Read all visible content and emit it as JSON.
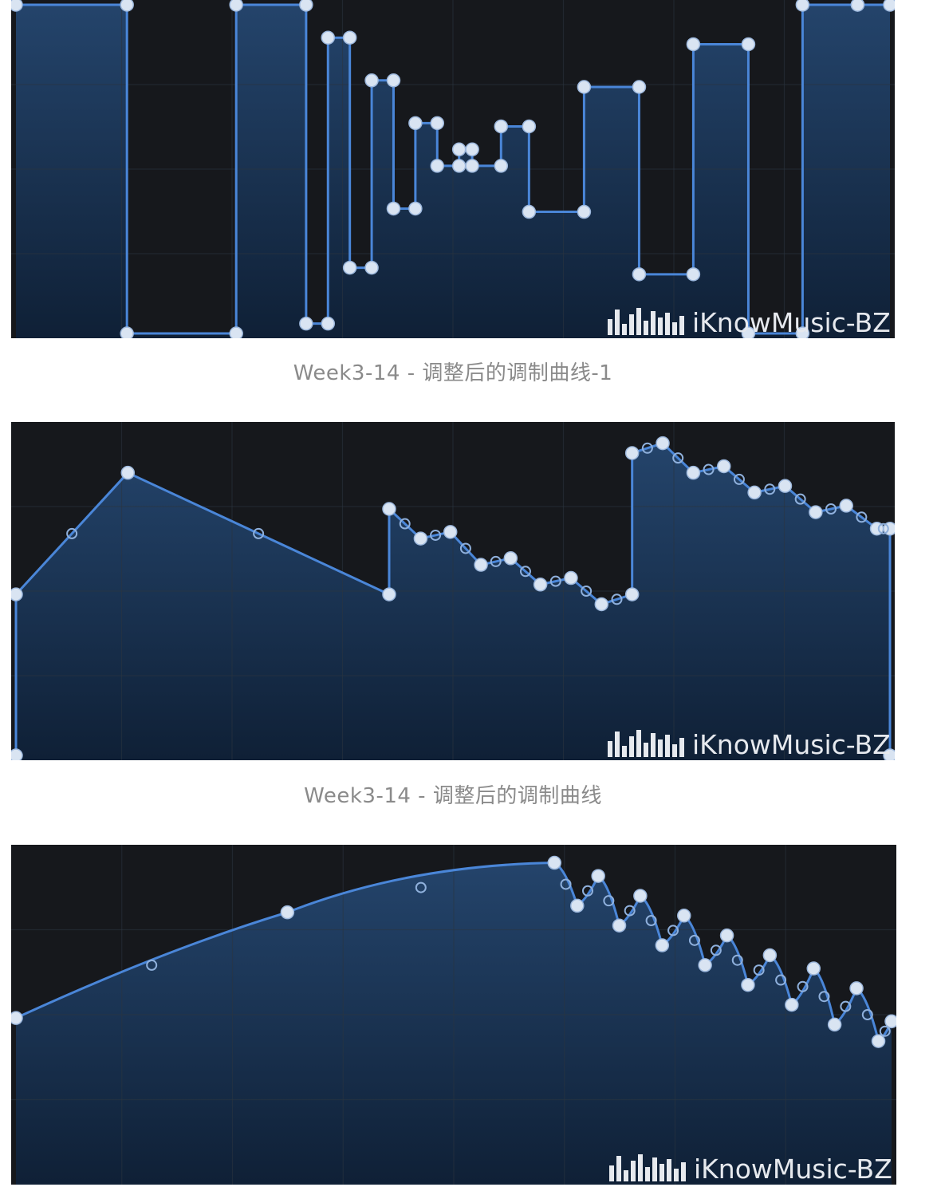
{
  "watermark": "iKnowMusic-BZ",
  "colors": {
    "line": "#4a86d8",
    "node": "#d9e4f2",
    "fill_top": "#24446b",
    "fill_bottom": "#0f2036",
    "grid": "#2c3540",
    "background": "#16181c"
  },
  "chart_data": [
    {
      "type": "line",
      "style": "step",
      "caption": "Week3-14 - 调整后的调制曲线-1",
      "xlim": [
        0,
        1
      ],
      "ylim": [
        0,
        1
      ],
      "grid": true,
      "x": [
        0,
        0.127,
        0.127,
        0.252,
        0.252,
        0.332,
        0.332,
        0.357,
        0.357,
        0.382,
        0.382,
        0.407,
        0.407,
        0.432,
        0.432,
        0.457,
        0.457,
        0.482,
        0.482,
        0.507,
        0.507,
        0.522,
        0.522,
        0.555,
        0.555,
        0.587,
        0.587,
        0.65,
        0.65,
        0.713,
        0.713,
        0.775,
        0.775,
        0.838,
        0.838,
        0.9,
        0.9,
        0.963,
        0.963,
        1
      ],
      "y": [
        1,
        1,
        0,
        0,
        1,
        1,
        0.03,
        0.03,
        0.9,
        0.9,
        0.2,
        0.2,
        0.77,
        0.77,
        0.38,
        0.38,
        0.64,
        0.64,
        0.51,
        0.51,
        0.56,
        0.56,
        0.51,
        0.51,
        0.63,
        0.63,
        0.37,
        0.37,
        0.75,
        0.75,
        0.18,
        0.18,
        0.88,
        0.88,
        0,
        0,
        1,
        1,
        1,
        1
      ]
    },
    {
      "type": "line",
      "style": "linear",
      "caption": "Week3-14 - 调整后的调制曲线",
      "xlim": [
        0,
        1
      ],
      "ylim": [
        0,
        1
      ],
      "grid": true,
      "x": [
        0,
        0,
        0.128,
        0.427,
        0.427,
        0.463,
        0.497,
        0.532,
        0.566,
        0.6,
        0.635,
        0.67,
        0.705,
        0.705,
        0.74,
        0.775,
        0.81,
        0.845,
        0.88,
        0.915,
        0.95,
        0.985,
        1,
        1
      ],
      "y": [
        0,
        0.49,
        0.86,
        0.49,
        0.75,
        0.66,
        0.68,
        0.58,
        0.6,
        0.52,
        0.54,
        0.46,
        0.49,
        0.92,
        0.95,
        0.86,
        0.88,
        0.8,
        0.82,
        0.74,
        0.76,
        0.69,
        0.69,
        0
      ]
    },
    {
      "type": "line",
      "style": "curve",
      "caption": "",
      "xlim": [
        0,
        1
      ],
      "ylim": [
        0,
        1
      ],
      "grid": true,
      "x": [
        0,
        0.31,
        0.615,
        0.641,
        0.665,
        0.689,
        0.713,
        0.738,
        0.763,
        0.787,
        0.812,
        0.836,
        0.861,
        0.886,
        0.911,
        0.935,
        0.96,
        0.985,
        1
      ],
      "y": [
        0.49,
        0.81,
        0.96,
        0.83,
        0.92,
        0.77,
        0.86,
        0.71,
        0.8,
        0.65,
        0.74,
        0.59,
        0.68,
        0.53,
        0.64,
        0.47,
        0.58,
        0.42,
        0.48
      ]
    }
  ]
}
